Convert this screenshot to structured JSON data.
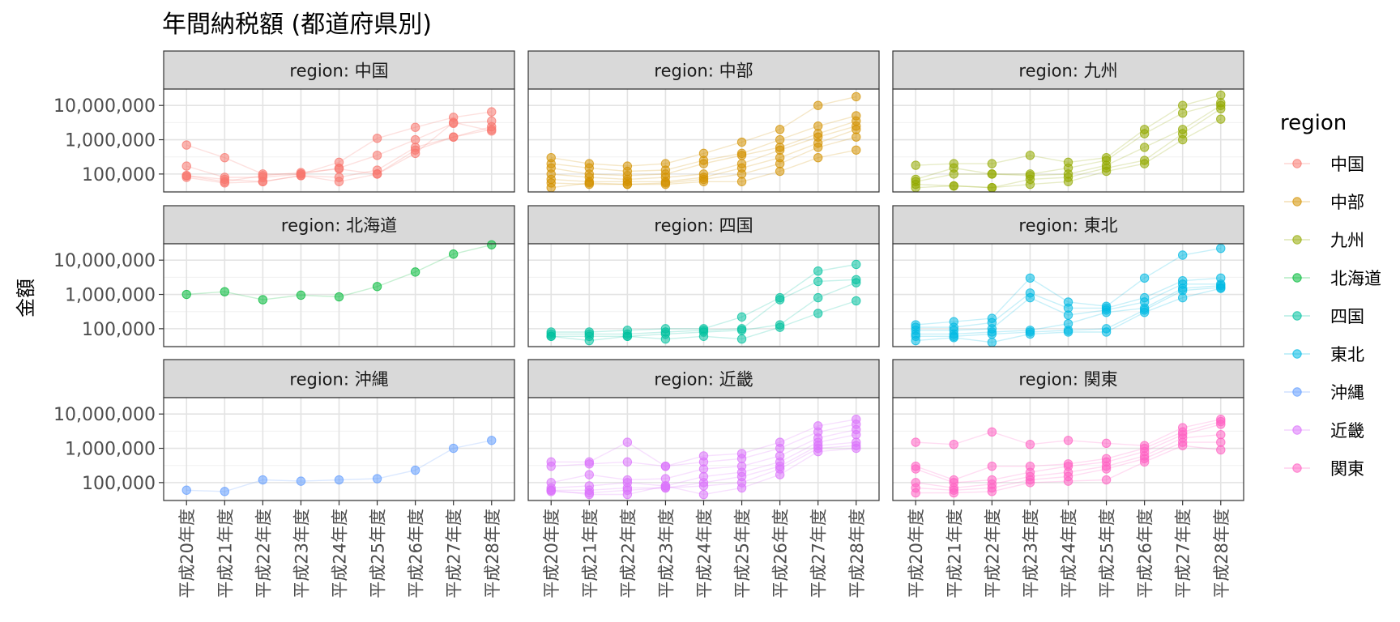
{
  "title": "年間納税額 (都道府県別)",
  "chart_data": {
    "type": "line",
    "title": "年間納税額 (都道府県別)",
    "xlabel": "",
    "ylabel": "金額",
    "y_scale": "log10",
    "ylim": [
      30000,
      30000000
    ],
    "y_ticks": [
      {
        "value": 100000,
        "label": "100,000"
      },
      {
        "value": 1000000,
        "label": "1,000,000"
      },
      {
        "value": 10000000,
        "label": "10,000,000"
      }
    ],
    "x_categories": [
      "平成20年度",
      "平成21年度",
      "平成22年度",
      "平成23年度",
      "平成24年度",
      "平成25年度",
      "平成26年度",
      "平成27年度",
      "平成28年度"
    ],
    "grid": true,
    "legend": {
      "title": "region",
      "position": "right"
    },
    "facet_strip_prefix": "region: ",
    "facets": [
      {
        "region": "中国",
        "color": "#F8766D",
        "series": [
          [
            700000,
            300000,
            100000,
            100000,
            220000,
            1100000,
            2300000,
            4500000,
            6500000
          ],
          [
            170000,
            80000,
            80000,
            100000,
            150000,
            350000,
            1000000,
            3000000,
            3500000
          ],
          [
            90000,
            70000,
            60000,
            90000,
            80000,
            130000,
            600000,
            1200000,
            2400000
          ],
          [
            80000,
            55000,
            60000,
            90000,
            60000,
            100000,
            500000,
            1200000,
            2000000
          ],
          [
            90000,
            60000,
            90000,
            110000,
            140000,
            100000,
            400000,
            3200000,
            1800000
          ]
        ]
      },
      {
        "region": "中部",
        "color": "#D39200",
        "series": [
          [
            300000,
            200000,
            170000,
            200000,
            400000,
            850000,
            2000000,
            10000000,
            18000000
          ],
          [
            200000,
            150000,
            120000,
            130000,
            250000,
            400000,
            1000000,
            2500000,
            5000000
          ],
          [
            150000,
            100000,
            90000,
            100000,
            200000,
            350000,
            600000,
            1500000,
            3500000
          ],
          [
            100000,
            80000,
            70000,
            80000,
            100000,
            200000,
            500000,
            1200000,
            2500000
          ],
          [
            70000,
            60000,
            60000,
            60000,
            80000,
            150000,
            300000,
            800000,
            2000000
          ],
          [
            55000,
            50000,
            50000,
            55000,
            70000,
            100000,
            200000,
            600000,
            1200000
          ],
          [
            40000,
            55000,
            50000,
            50000,
            60000,
            60000,
            120000,
            300000,
            500000
          ]
        ]
      },
      {
        "region": "九州",
        "color": "#93AA00",
        "series": [
          [
            180000,
            200000,
            200000,
            350000,
            220000,
            300000,
            2000000,
            10000000,
            20000000
          ],
          [
            70000,
            150000,
            100000,
            100000,
            150000,
            250000,
            1500000,
            6000000,
            12000000
          ],
          [
            60000,
            100000,
            100000,
            90000,
            100000,
            180000,
            600000,
            2000000,
            10000000
          ],
          [
            50000,
            45000,
            40000,
            70000,
            80000,
            150000,
            250000,
            1500000,
            8000000
          ],
          [
            40000,
            45000,
            40000,
            50000,
            60000,
            120000,
            200000,
            1000000,
            4000000
          ]
        ]
      },
      {
        "region": "北海道",
        "color": "#00BA38",
        "series": [
          [
            1000000,
            1200000,
            700000,
            950000,
            850000,
            1700000,
            4500000,
            15000000,
            28000000
          ]
        ]
      },
      {
        "region": "四国",
        "color": "#00C19F",
        "series": [
          [
            80000,
            80000,
            90000,
            100000,
            100000,
            220000,
            800000,
            4800000,
            7500000
          ],
          [
            70000,
            70000,
            70000,
            80000,
            90000,
            100000,
            700000,
            2400000,
            2700000
          ],
          [
            60000,
            60000,
            60000,
            70000,
            80000,
            90000,
            130000,
            800000,
            2200000
          ],
          [
            60000,
            45000,
            60000,
            50000,
            60000,
            50000,
            110000,
            280000,
            650000
          ]
        ]
      },
      {
        "region": "東北",
        "color": "#00B9E3",
        "series": [
          [
            130000,
            160000,
            200000,
            3000000,
            600000,
            450000,
            3000000,
            14000000,
            22000000
          ],
          [
            110000,
            110000,
            150000,
            1100000,
            400000,
            400000,
            800000,
            2500000,
            3000000
          ],
          [
            90000,
            90000,
            100000,
            800000,
            250000,
            350000,
            600000,
            2000000,
            2000000
          ],
          [
            70000,
            70000,
            80000,
            90000,
            140000,
            300000,
            400000,
            1500000,
            1800000
          ],
          [
            60000,
            60000,
            70000,
            80000,
            90000,
            100000,
            350000,
            1300000,
            1600000
          ],
          [
            45000,
            55000,
            40000,
            70000,
            80000,
            80000,
            300000,
            800000,
            1500000
          ]
        ]
      },
      {
        "region": "沖縄",
        "color": "#619CFF",
        "series": [
          [
            60000,
            55000,
            120000,
            110000,
            120000,
            130000,
            230000,
            1000000,
            1700000
          ]
        ]
      },
      {
        "region": "近畿",
        "color": "#DB72FB",
        "series": [
          [
            400000,
            400000,
            1500000,
            300000,
            600000,
            700000,
            1500000,
            4500000,
            7000000
          ],
          [
            300000,
            350000,
            400000,
            300000,
            400000,
            500000,
            1000000,
            3000000,
            5000000
          ],
          [
            100000,
            170000,
            120000,
            130000,
            250000,
            300000,
            600000,
            2000000,
            3500000
          ],
          [
            70000,
            80000,
            100000,
            80000,
            150000,
            200000,
            400000,
            1500000,
            2500000
          ],
          [
            60000,
            60000,
            70000,
            70000,
            100000,
            150000,
            300000,
            1200000,
            1500000
          ],
          [
            55000,
            50000,
            60000,
            70000,
            80000,
            100000,
            250000,
            1000000,
            1200000
          ],
          [
            60000,
            45000,
            45000,
            80000,
            45000,
            70000,
            170000,
            800000,
            1000000
          ]
        ]
      },
      {
        "region": "関東",
        "color": "#FF61C3",
        "series": [
          [
            1500000,
            1300000,
            3000000,
            1300000,
            1700000,
            1400000,
            1200000,
            4000000,
            7000000
          ],
          [
            300000,
            120000,
            300000,
            300000,
            350000,
            500000,
            1000000,
            3000000,
            6000000
          ],
          [
            250000,
            100000,
            120000,
            200000,
            300000,
            400000,
            800000,
            2500000,
            5000000
          ],
          [
            100000,
            70000,
            90000,
            150000,
            200000,
            300000,
            600000,
            2000000,
            2500000
          ],
          [
            70000,
            60000,
            70000,
            120000,
            150000,
            250000,
            500000,
            1500000,
            1500000
          ],
          [
            50000,
            50000,
            55000,
            100000,
            110000,
            120000,
            400000,
            1200000,
            900000
          ]
        ]
      }
    ]
  }
}
